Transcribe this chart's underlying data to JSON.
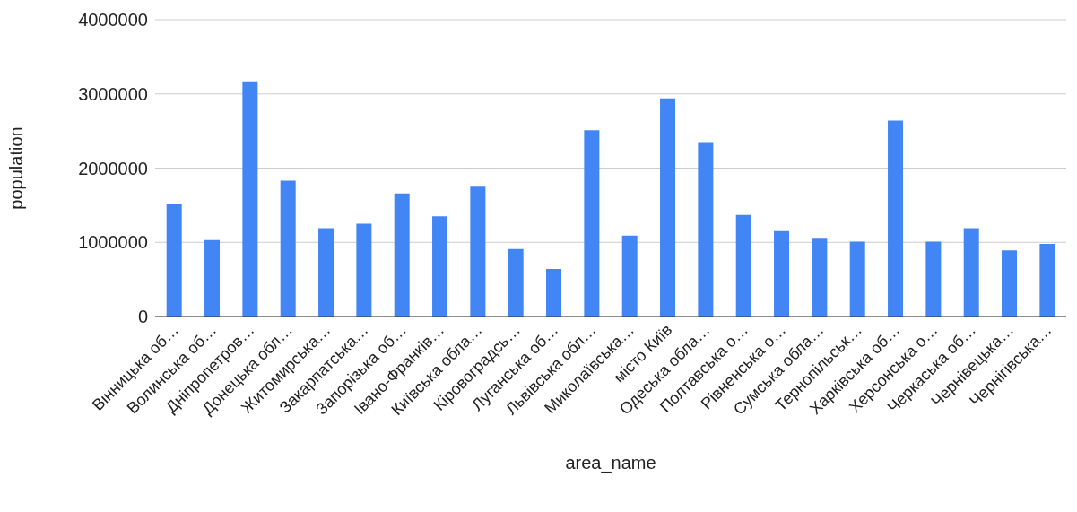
{
  "chart_data": {
    "type": "bar",
    "xlabel": "area_name",
    "ylabel": "population",
    "categories": [
      "Вінницька об…",
      "Волинська об…",
      "Дніпропетров…",
      "Донецька обл…",
      "Житомирська…",
      "Закарпатська…",
      "Запорізька об…",
      "Івано-Франків…",
      "Київська обла…",
      "Кіровоградсь…",
      "Луганська об…",
      "Львівська обл…",
      "Миколаївська…",
      "місто Київ",
      "Одеська обла…",
      "Полтавська о…",
      "Рівненська о…",
      "Сумська обла…",
      "Тернопільськ…",
      "Харківська об…",
      "Херсонська о…",
      "Черкаська об…",
      "Чернівецька…",
      "Чернігівська…"
    ],
    "values": [
      1520000,
      1030000,
      3170000,
      1830000,
      1190000,
      1250000,
      1660000,
      1350000,
      1760000,
      910000,
      640000,
      2510000,
      1090000,
      2940000,
      2350000,
      1370000,
      1150000,
      1060000,
      1010000,
      2640000,
      1010000,
      1190000,
      890000,
      980000
    ],
    "color": "#4285f4",
    "ylim": [
      0,
      4000000
    ],
    "yticks": [
      0,
      1000000,
      2000000,
      3000000,
      4000000
    ],
    "grid": "y"
  }
}
